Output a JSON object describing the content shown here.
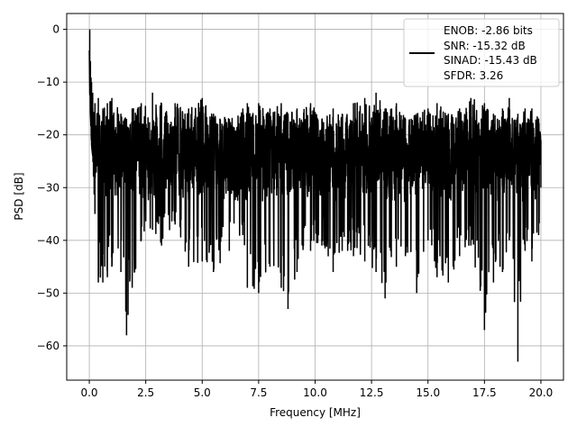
{
  "chart_data": {
    "type": "line",
    "title": "",
    "xlabel": "Frequency [MHz]",
    "ylabel": "PSD [dB]",
    "xlim": [
      -1.0,
      21.0
    ],
    "ylim": [
      -66.5,
      3.0
    ],
    "grid": true,
    "xticks": [
      0.0,
      2.5,
      5.0,
      7.5,
      10.0,
      12.5,
      15.0,
      17.5,
      20.0
    ],
    "xtick_labels": [
      "0.0",
      "2.5",
      "5.0",
      "7.5",
      "10.0",
      "12.5",
      "15.0",
      "17.5",
      "20.0"
    ],
    "yticks": [
      0,
      -10,
      -20,
      -30,
      -40,
      -50,
      -60
    ],
    "ytick_labels": [
      "0",
      "−10",
      "−20",
      "−30",
      "−40",
      "−50",
      "−60"
    ],
    "legend": {
      "placement": "top-right",
      "lines": [
        "ENOB: -2.86 bits",
        "SNR: -15.32 dB",
        "SINAD: -15.43 dB",
        "SFDR: 3.26"
      ]
    },
    "series": [
      {
        "color": "#000000",
        "x": [
          0.0,
          0.02,
          0.05,
          0.1,
          0.15,
          0.25,
          0.4,
          0.6,
          0.8,
          1.0,
          1.4,
          1.65,
          1.9,
          2.3,
          2.8,
          3.2,
          3.8,
          4.4,
          5.0,
          5.5,
          6.2,
          6.8,
          7.0,
          7.5,
          8.0,
          8.5,
          8.8,
          9.2,
          9.8,
          10.3,
          10.8,
          11.2,
          11.7,
          12.2,
          12.7,
          13.1,
          13.6,
          14.0,
          14.5,
          15.0,
          15.4,
          15.9,
          16.4,
          16.9,
          17.5,
          17.9,
          18.3,
          18.6,
          18.98,
          19.3,
          19.6,
          19.9,
          20.0
        ],
        "min": [
          -4,
          -12,
          -16,
          -22,
          -24,
          -35,
          -48,
          -48,
          -47,
          -45,
          -46,
          -58,
          -49,
          -40,
          -38,
          -41,
          -37,
          -45,
          -44,
          -46,
          -42,
          -39,
          -49,
          -50,
          -45,
          -49,
          -53,
          -46,
          -42,
          -41,
          -46,
          -42,
          -43,
          -44,
          -46,
          -51,
          -45,
          -43,
          -50,
          -40,
          -47,
          -48,
          -43,
          -41,
          -57,
          -48,
          -46,
          -40,
          -63,
          -42,
          -44,
          -39,
          -30
        ],
        "max": [
          -4,
          0,
          -6,
          -10,
          -12,
          -14,
          -13,
          -15,
          -14,
          -13,
          -16,
          -17,
          -15,
          -14,
          -12,
          -14,
          -14,
          -15,
          -13,
          -16,
          -17,
          -15,
          -14,
          -14,
          -15,
          -14,
          -16,
          -15,
          -14,
          -17,
          -15,
          -16,
          -14,
          -13,
          -12,
          -15,
          -14,
          -17,
          -16,
          -15,
          -14,
          -16,
          -15,
          -13,
          -14,
          -16,
          -15,
          -13,
          -16,
          -15,
          -15,
          -17,
          -21
        ]
      }
    ]
  }
}
